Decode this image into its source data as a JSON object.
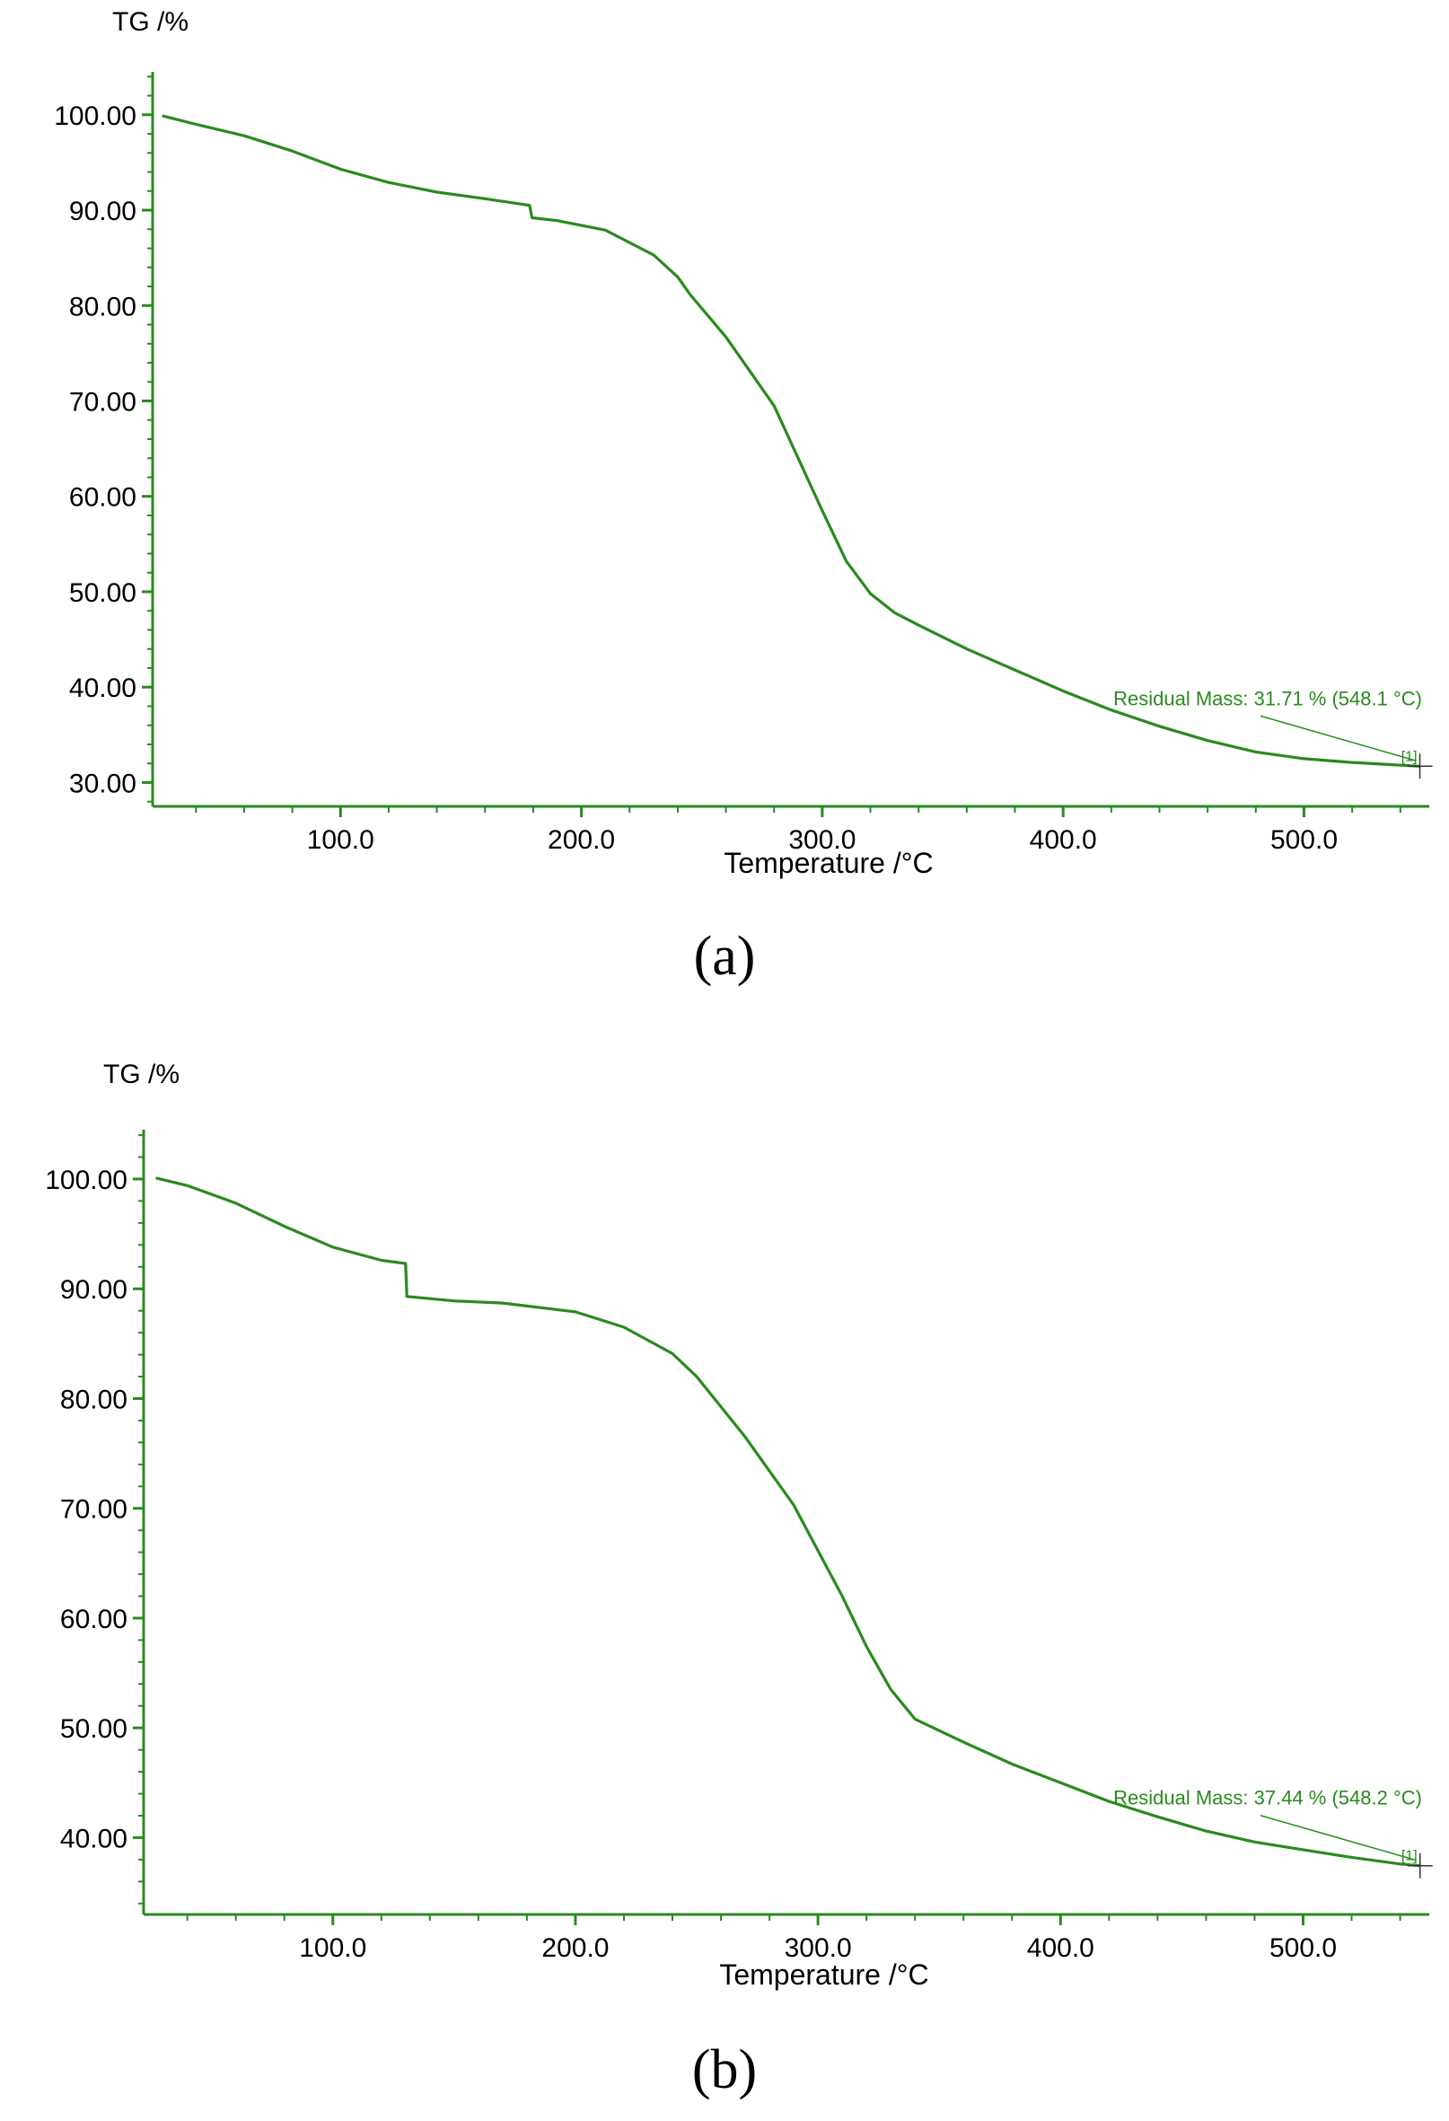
{
  "colors": {
    "curve": "#2a8a1e",
    "axis": "#2a8a1e",
    "annotation": "#2a8a1e",
    "text": "#000000"
  },
  "chart_data": [
    {
      "type": "line",
      "panel_label": "(a)",
      "ylabel": "TG /%",
      "xlabel": "Temperature /°C",
      "xlim": [
        22,
        552
      ],
      "ylim": [
        27.5,
        104.5
      ],
      "x_ticks": [
        100.0,
        200.0,
        300.0,
        400.0,
        500.0
      ],
      "x_tick_labels": [
        "100.0",
        "200.0",
        "300.0",
        "400.0",
        "500.0"
      ],
      "y_ticks": [
        100,
        90,
        80,
        70,
        60,
        50,
        40,
        30
      ],
      "y_tick_labels": [
        "100.00",
        "90.00",
        "80.00",
        "70.00",
        "60.00",
        "50.00",
        "40.00",
        "30.00"
      ],
      "grid": false,
      "series": [
        {
          "x": [
            26,
            40,
            60,
            80,
            100,
            120,
            140,
            160,
            178.5,
            179.5,
            190,
            210,
            230,
            240,
            245,
            260,
            280,
            300,
            310,
            320,
            330,
            340,
            360,
            380,
            400,
            420,
            440,
            460,
            480,
            500,
            520,
            548.1
          ],
          "y": [
            99.9,
            99.0,
            97.8,
            96.2,
            94.3,
            92.9,
            91.9,
            91.2,
            90.5,
            89.2,
            88.9,
            87.9,
            85.3,
            83.0,
            81.2,
            76.7,
            69.5,
            58.5,
            53.2,
            49.8,
            47.8,
            46.5,
            44.0,
            41.8,
            39.6,
            37.6,
            35.9,
            34.4,
            33.2,
            32.5,
            32.1,
            31.71
          ]
        }
      ],
      "annotations": [
        {
          "text": "Residual Mass: 31.71 % (548.1 °C)",
          "x": 548.1,
          "y": 31.71
        },
        {
          "text": "[1]",
          "x": 548.1,
          "y": 31.71
        }
      ]
    },
    {
      "type": "line",
      "panel_label": "(b)",
      "ylabel": "TG /%",
      "xlabel": "Temperature /°C",
      "xlim": [
        22,
        552
      ],
      "ylim": [
        33.0,
        104.5
      ],
      "x_ticks": [
        100.0,
        200.0,
        300.0,
        400.0,
        500.0
      ],
      "x_tick_labels": [
        "100.0",
        "200.0",
        "300.0",
        "400.0",
        "500.0"
      ],
      "y_ticks": [
        100,
        90,
        80,
        70,
        60,
        50,
        40
      ],
      "y_tick_labels": [
        "100.00",
        "90.00",
        "80.00",
        "70.00",
        "60.00",
        "50.00",
        "40.00"
      ],
      "grid": false,
      "series": [
        {
          "x": [
            27,
            40,
            60,
            80,
            100,
            120,
            130,
            130.5,
            150,
            170,
            200,
            220,
            240,
            250,
            270,
            290,
            310,
            320,
            330,
            340,
            360,
            380,
            400,
            420,
            440,
            460,
            480,
            500,
            520,
            540,
            548.2
          ],
          "y": [
            100.1,
            99.4,
            97.8,
            95.7,
            93.8,
            92.6,
            92.3,
            89.3,
            88.9,
            88.7,
            87.9,
            86.5,
            84.1,
            82.0,
            76.5,
            70.3,
            62.0,
            57.4,
            53.5,
            50.8,
            48.7,
            46.7,
            45.0,
            43.3,
            41.9,
            40.6,
            39.6,
            38.9,
            38.2,
            37.6,
            37.44
          ]
        }
      ],
      "annotations": [
        {
          "text": "Residual Mass: 37.44 % (548.2 °C)",
          "x": 548.2,
          "y": 37.44
        },
        {
          "text": "[1]",
          "x": 548.2,
          "y": 37.44
        }
      ]
    }
  ]
}
